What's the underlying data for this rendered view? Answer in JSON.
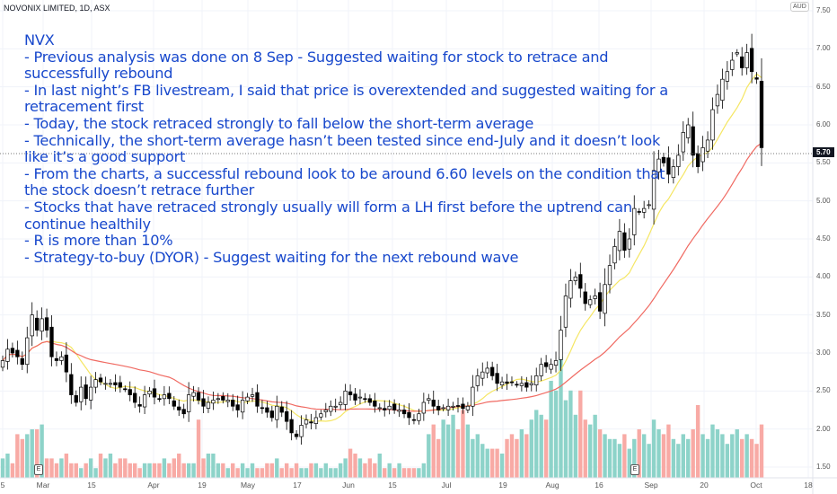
{
  "header": {
    "title": "NOVONIX LIMITED, 1D, ASX",
    "currency": "AUD"
  },
  "annotation": {
    "lines": [
      "NVX",
      "- Previous analysis was done on 8 Sep - Suggested waiting for stock to retrace and",
      "successfully rebound",
      "- In last night’s FB livestream, I said that price is overextended and suggested waiting for a",
      "retracement first",
      "- Today, the stock retraced strongly to fall below the short-term average",
      "- Technically, the short-term average hasn’t been tested since end-July and it doesn’t look",
      "like it’s a good support",
      "- From the charts, a successful rebound look to be around 6.60 levels on the condition that",
      "the stock doesn’t retrace further",
      "- Stocks that have retraced strongly usually will form a LH first before the uptrend can",
      "continue healthily",
      "- R is more than 10%",
      "- Strategy-to-buy (DYOR) - Suggest waiting for the next rebound wave"
    ]
  },
  "earnings_marker": "E",
  "chart_data": {
    "type": "candlestick",
    "title": "NOVONIX LIMITED, 1D, ASX",
    "ylim": [
      1.5,
      7.5
    ],
    "y_ticks": [
      "7.50",
      "7.00",
      "6.50",
      "6.00",
      "5.50",
      "5.00",
      "4.50",
      "4.00",
      "3.50",
      "3.00",
      "2.50",
      "2.00",
      "1.50"
    ],
    "x_ticks": [
      "5",
      "Mar",
      "15",
      "Apr",
      "19",
      "May",
      "17",
      "Jun",
      "15",
      "Jul",
      "19",
      "Aug",
      "16",
      "Sep",
      "20",
      "Oct",
      "18"
    ],
    "current_price": "5.70",
    "moving_averages": [
      {
        "name": "SMA short",
        "period": 10,
        "color": "#f5e663"
      },
      {
        "name": "SMA long",
        "period": 30,
        "color": "#f06a62"
      }
    ],
    "closes": [
      2.9,
      3.05,
      3.0,
      2.95,
      2.85,
      3.2,
      3.5,
      3.3,
      3.45,
      3.3,
      2.95,
      2.9,
      2.95,
      2.75,
      2.45,
      2.35,
      2.55,
      2.4,
      2.55,
      2.65,
      2.62,
      2.6,
      2.6,
      2.58,
      2.55,
      2.52,
      2.45,
      2.35,
      2.3,
      2.45,
      2.5,
      2.42,
      2.4,
      2.45,
      2.4,
      2.3,
      2.25,
      2.2,
      2.45,
      2.48,
      2.38,
      2.3,
      2.35,
      2.38,
      2.4,
      2.38,
      2.38,
      2.3,
      2.25,
      2.38,
      2.42,
      2.45,
      2.3,
      2.28,
      2.22,
      2.15,
      2.3,
      2.22,
      2.1,
      1.95,
      1.9,
      2.05,
      2.12,
      2.08,
      2.15,
      2.2,
      2.25,
      2.3,
      2.3,
      2.35,
      2.5,
      2.45,
      2.38,
      2.42,
      2.4,
      2.35,
      2.3,
      2.28,
      2.25,
      2.3,
      2.25,
      2.25,
      2.2,
      2.15,
      2.12,
      2.2,
      2.35,
      2.4,
      2.3,
      2.25,
      2.28,
      2.3,
      2.3,
      2.3,
      2.27,
      2.3,
      2.55,
      2.7,
      2.75,
      2.8,
      2.7,
      2.6,
      2.62,
      2.6,
      2.62,
      2.58,
      2.6,
      2.55,
      2.6,
      2.7,
      2.85,
      2.82,
      2.85,
      2.9,
      3.3,
      3.75,
      3.95,
      4.0,
      3.85,
      3.65,
      3.7,
      3.75,
      3.55,
      3.9,
      4.15,
      4.4,
      4.6,
      4.35,
      4.5,
      4.9,
      4.85,
      4.9,
      4.95,
      5.4,
      5.55,
      5.5,
      5.35,
      5.45,
      5.6,
      5.9,
      6.0,
      5.6,
      5.45,
      5.7,
      5.8,
      6.2,
      6.4,
      6.6,
      6.7,
      6.85,
      6.95,
      6.75,
      6.95,
      6.7,
      6.6,
      5.7
    ],
    "volumes": [
      4,
      5,
      3,
      9,
      8,
      9,
      10,
      10,
      11,
      4,
      4,
      3,
      4,
      5,
      3,
      3,
      2,
      3,
      4,
      2,
      5,
      4,
      5,
      3,
      4,
      4,
      3,
      3,
      2,
      3,
      3,
      3,
      3,
      4,
      3,
      4,
      5,
      3,
      3,
      3,
      12,
      4,
      5,
      5,
      3,
      3,
      2,
      3,
      2,
      3,
      2,
      3,
      2,
      2,
      3,
      3,
      4,
      2,
      3,
      2,
      3,
      2,
      2,
      3,
      3,
      2,
      3,
      2,
      2,
      3,
      4,
      6,
      5,
      4,
      3,
      4,
      3,
      5,
      2,
      3,
      2,
      3,
      2,
      2,
      2,
      2,
      3,
      9,
      11,
      8,
      12,
      11,
      13,
      10,
      14,
      11,
      8,
      9,
      7,
      6,
      6,
      6,
      5,
      8,
      9,
      8,
      10,
      9,
      12,
      14,
      13,
      12,
      20,
      18,
      25,
      16,
      18,
      13,
      18,
      12,
      11,
      13,
      10,
      9,
      8,
      8,
      7,
      9,
      6,
      8,
      10,
      9,
      7,
      12,
      10,
      9,
      11,
      8,
      7,
      9,
      8,
      10,
      15,
      9,
      8,
      11,
      10,
      9,
      7,
      9,
      10,
      8,
      9,
      8,
      7,
      11
    ]
  }
}
